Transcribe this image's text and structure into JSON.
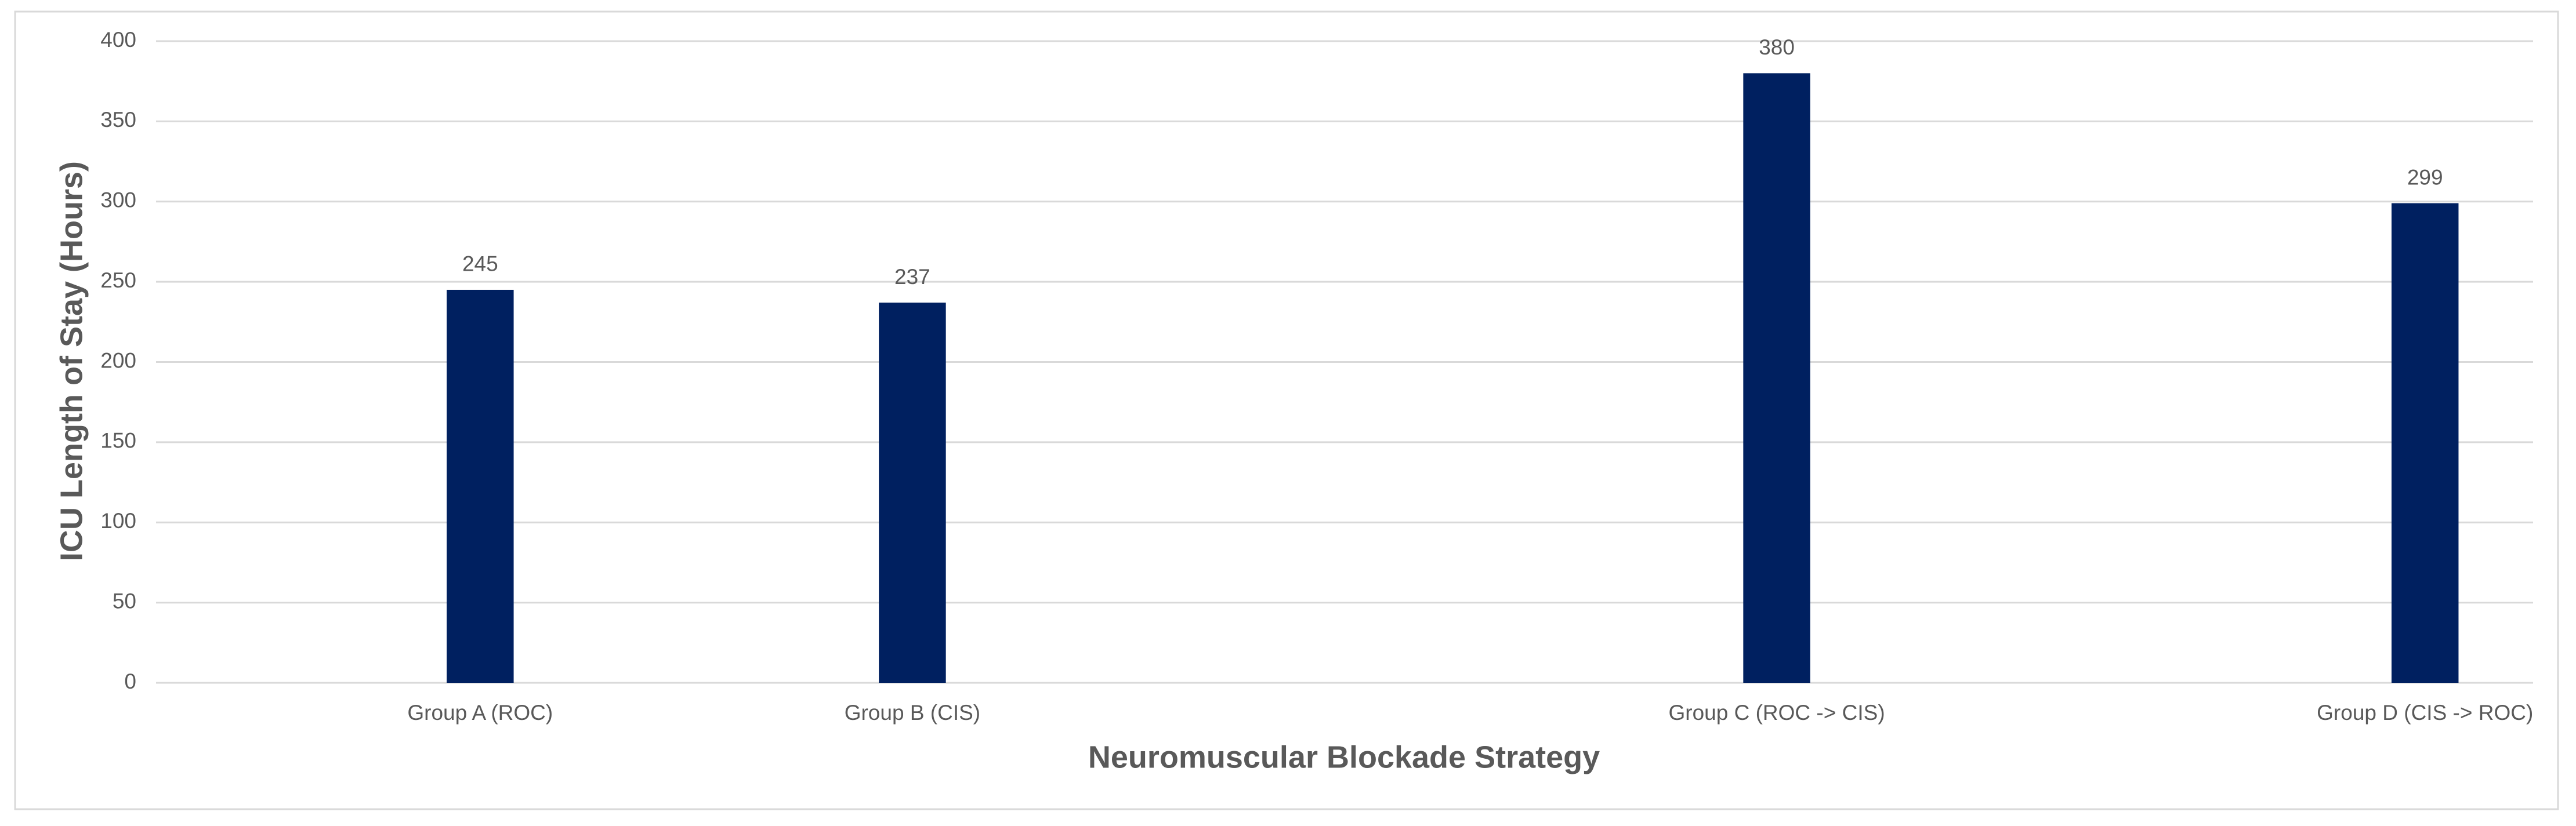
{
  "chart_data": {
    "type": "bar",
    "x_label": "Neuromuscular Blockade Strategy",
    "y_label": "ICU Length of Stay (Hours)",
    "categories": [
      null,
      "Group A (ROC)",
      null,
      "Group B (CIS)",
      null,
      null,
      null,
      "Group C (ROC -> CIS)",
      null,
      null,
      "Group D (CIS -> ROC)"
    ],
    "values": [
      null,
      245,
      null,
      237,
      null,
      null,
      null,
      380,
      null,
      null,
      299
    ],
    "color": "#002060",
    "ylim": [
      0,
      400
    ],
    "yticks": [
      0,
      50,
      100,
      150,
      200,
      250,
      300,
      350,
      400
    ],
    "grid": true
  }
}
